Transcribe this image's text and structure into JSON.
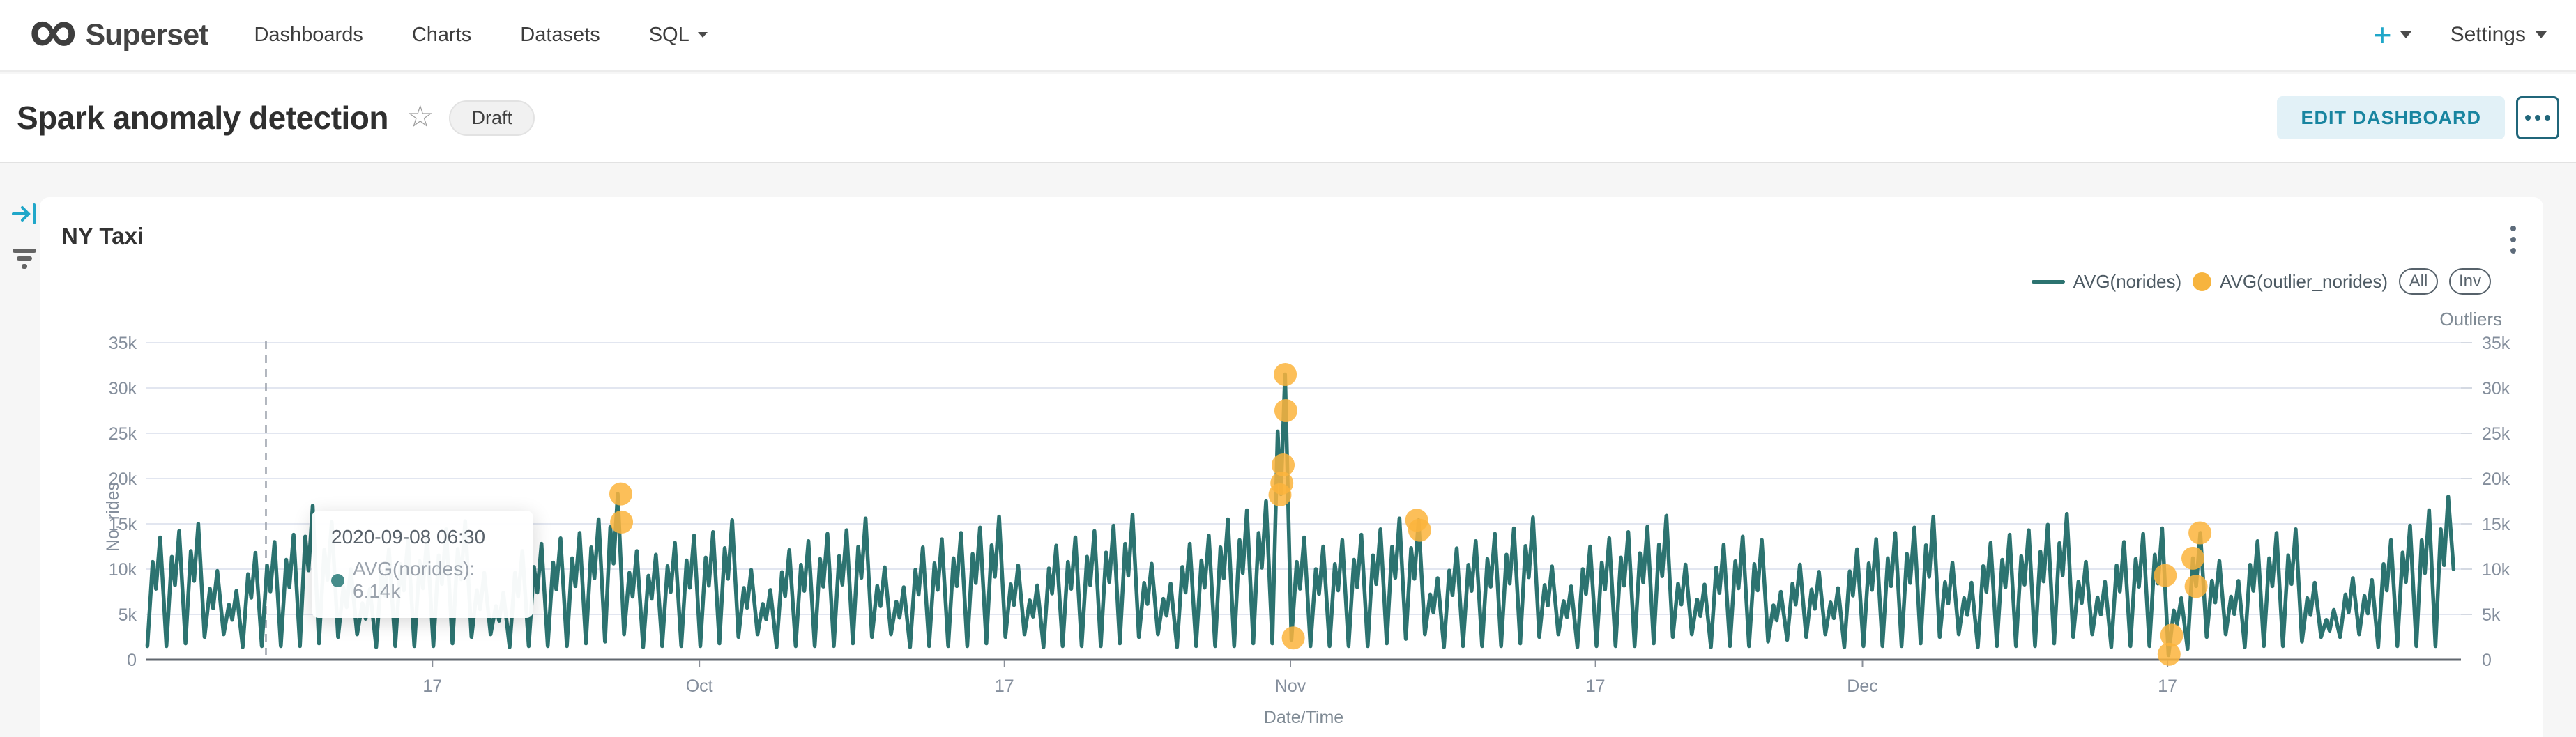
{
  "navbar": {
    "brand": "Superset",
    "items": [
      "Dashboards",
      "Charts",
      "Datasets",
      "SQL"
    ],
    "plus_label": "+",
    "settings_label": "Settings"
  },
  "header": {
    "title": "Spark anomaly detection",
    "badge": "Draft",
    "edit_button": "EDIT DASHBOARD"
  },
  "chart_card": {
    "title": "NY Taxi"
  },
  "tooltip": {
    "date": "2020-09-08 06:30",
    "line": "AVG(norides): 6.14k"
  },
  "colors": {
    "series_line": "#2c7370",
    "outlier": "#fbb43c",
    "accent": "#20a7c9",
    "gridline": "#e2e6f0",
    "axis_line": "#61676f",
    "tick_label": "#848e9c",
    "crosshair": "#9aa0ab"
  },
  "chart_data": {
    "type": "line",
    "title": "NY Taxi",
    "xlabel": "Date/Time",
    "ylabel_left": "No. rides",
    "ylabel_right": "Outliers",
    "legend": [
      {
        "name": "AVG(norides)",
        "type": "line",
        "color": "#2c7370"
      },
      {
        "name": "AVG(outlier_norides)",
        "type": "scatter",
        "color": "#fbb43c"
      }
    ],
    "legend_buttons": [
      "All",
      "Inv"
    ],
    "x_start_date": "2020-09-02",
    "x_span_days": 121,
    "ylim": [
      0,
      35000
    ],
    "y_ticks": [
      "35k",
      "30k",
      "25k",
      "20k",
      "15k",
      "10k",
      "5k",
      "0"
    ],
    "x_ticks": [
      {
        "day": 15,
        "label": "17"
      },
      {
        "day": 29,
        "label": "Oct"
      },
      {
        "day": 45,
        "label": "17"
      },
      {
        "day": 60,
        "label": "Nov"
      },
      {
        "day": 76,
        "label": "17"
      },
      {
        "day": 90,
        "label": "Dec"
      },
      {
        "day": 106,
        "label": "17"
      }
    ],
    "crosshair_day": 6.27,
    "hover_point": {
      "date": "2020-09-08 06:30",
      "value_k": 6.14
    },
    "daily_lo_hi_k": [
      [
        1.5,
        13.5
      ],
      [
        1.5,
        14.2
      ],
      [
        1.8,
        15.0
      ],
      [
        2.5,
        9.8
      ],
      [
        2.8,
        7.6
      ],
      [
        1.4,
        11.8
      ],
      [
        1.5,
        13.0
      ],
      [
        1.5,
        13.8
      ],
      [
        1.5,
        17.0
      ],
      [
        1.8,
        15.2
      ],
      [
        2.5,
        10.0
      ],
      [
        2.8,
        7.8
      ],
      [
        1.4,
        12.2
      ],
      [
        1.5,
        13.2
      ],
      [
        1.5,
        13.6
      ],
      [
        1.5,
        14.4
      ],
      [
        1.8,
        15.3
      ],
      [
        2.5,
        9.6
      ],
      [
        2.8,
        7.4
      ],
      [
        1.4,
        12.0
      ],
      [
        1.5,
        12.8
      ],
      [
        1.5,
        13.4
      ],
      [
        1.5,
        14.0
      ],
      [
        1.8,
        15.5
      ],
      [
        2.0,
        18.3
      ],
      [
        2.8,
        12.0
      ],
      [
        1.4,
        11.6
      ],
      [
        1.5,
        12.9
      ],
      [
        1.5,
        13.7
      ],
      [
        1.5,
        14.1
      ],
      [
        1.8,
        15.4
      ],
      [
        2.5,
        9.9
      ],
      [
        2.8,
        7.7
      ],
      [
        1.4,
        12.1
      ],
      [
        1.5,
        13.1
      ],
      [
        1.5,
        13.9
      ],
      [
        1.5,
        14.3
      ],
      [
        1.8,
        15.6
      ],
      [
        2.5,
        10.2
      ],
      [
        2.8,
        8.0
      ],
      [
        1.4,
        12.4
      ],
      [
        1.5,
        13.3
      ],
      [
        1.5,
        14.0
      ],
      [
        1.5,
        14.6
      ],
      [
        1.8,
        15.8
      ],
      [
        2.5,
        10.4
      ],
      [
        2.8,
        8.2
      ],
      [
        1.4,
        12.6
      ],
      [
        1.5,
        13.5
      ],
      [
        1.5,
        14.2
      ],
      [
        1.5,
        14.8
      ],
      [
        1.8,
        16.0
      ],
      [
        2.5,
        10.6
      ],
      [
        2.8,
        8.4
      ],
      [
        1.4,
        12.8
      ],
      [
        1.5,
        13.7
      ],
      [
        1.5,
        15.5
      ],
      [
        1.5,
        16.5
      ],
      [
        1.8,
        17.5
      ],
      [
        1.8,
        31.5
      ],
      [
        2.2,
        13.5
      ],
      [
        1.5,
        12.5
      ],
      [
        1.5,
        13.2
      ],
      [
        1.5,
        13.8
      ],
      [
        1.5,
        14.4
      ],
      [
        1.8,
        15.6
      ],
      [
        2.3,
        15.4
      ],
      [
        2.8,
        9.0
      ],
      [
        1.4,
        12.3
      ],
      [
        1.5,
        13.1
      ],
      [
        1.5,
        13.9
      ],
      [
        1.5,
        14.5
      ],
      [
        1.8,
        15.7
      ],
      [
        2.5,
        10.3
      ],
      [
        2.8,
        8.1
      ],
      [
        1.4,
        12.5
      ],
      [
        1.5,
        13.4
      ],
      [
        1.5,
        14.1
      ],
      [
        1.5,
        14.7
      ],
      [
        1.8,
        15.9
      ],
      [
        2.5,
        10.5
      ],
      [
        2.8,
        8.3
      ],
      [
        1.4,
        12.7
      ],
      [
        1.5,
        13.6
      ],
      [
        1.5,
        13.2
      ],
      [
        2.0,
        7.5
      ],
      [
        2.2,
        10.5
      ],
      [
        2.5,
        9.7
      ],
      [
        2.8,
        7.9
      ],
      [
        1.4,
        12.2
      ],
      [
        1.5,
        13.3
      ],
      [
        1.5,
        14.0
      ],
      [
        1.5,
        14.6
      ],
      [
        1.8,
        15.8
      ],
      [
        2.5,
        10.7
      ],
      [
        2.8,
        8.5
      ],
      [
        1.4,
        12.9
      ],
      [
        1.5,
        13.8
      ],
      [
        1.5,
        14.3
      ],
      [
        1.5,
        14.9
      ],
      [
        1.8,
        16.1
      ],
      [
        2.5,
        10.8
      ],
      [
        2.8,
        8.6
      ],
      [
        1.4,
        13.0
      ],
      [
        1.5,
        13.9
      ],
      [
        1.5,
        14.5
      ],
      [
        0.5,
        6.8
      ],
      [
        1.2,
        14.0
      ],
      [
        2.5,
        10.9
      ],
      [
        2.8,
        8.7
      ],
      [
        1.4,
        13.1
      ],
      [
        1.5,
        14.0
      ],
      [
        1.5,
        14.4
      ],
      [
        2.0,
        8.5
      ],
      [
        2.5,
        5.5
      ],
      [
        2.5,
        9.0
      ],
      [
        2.8,
        8.8
      ],
      [
        1.4,
        13.2
      ],
      [
        1.5,
        14.8
      ],
      [
        1.5,
        16.5
      ],
      [
        1.5,
        18.0
      ]
    ],
    "outliers_day_valuek": [
      [
        24.88,
        18.3
      ],
      [
        24.92,
        15.2
      ],
      [
        59.45,
        18.2
      ],
      [
        59.55,
        19.5
      ],
      [
        59.62,
        21.5
      ],
      [
        59.73,
        31.5
      ],
      [
        59.76,
        27.5
      ],
      [
        60.15,
        2.4
      ],
      [
        66.62,
        15.4
      ],
      [
        66.78,
        14.3
      ],
      [
        105.88,
        9.3
      ],
      [
        106.08,
        0.6
      ],
      [
        106.22,
        2.7
      ],
      [
        107.33,
        11.2
      ],
      [
        107.5,
        8.1
      ],
      [
        107.7,
        14.0
      ]
    ]
  }
}
